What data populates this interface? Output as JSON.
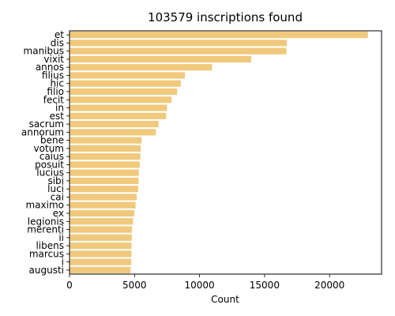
{
  "chart_data": {
    "type": "bar",
    "orientation": "horizontal",
    "title": "103579 inscriptions found",
    "xlabel": "Count",
    "ylabel": "",
    "xlim": [
      0,
      24000
    ],
    "xticks": [
      0,
      5000,
      10000,
      15000,
      20000
    ],
    "grid": false,
    "bar_color": "#f0c97d",
    "categories": [
      "et",
      "dis",
      "manibus",
      "vixit",
      "annos",
      "filius",
      "hic",
      "filio",
      "fecit",
      "in",
      "est",
      "sacrum",
      "annorum",
      "bene",
      "votum",
      "caius",
      "posuit",
      "lucius",
      "sibi",
      "luci",
      "cai",
      "maximo",
      "ex",
      "legionis",
      "merenti",
      "ii",
      "libens",
      "marcus",
      "i",
      "augusti"
    ],
    "values": [
      22950,
      16720,
      16690,
      13980,
      10970,
      8870,
      8560,
      8280,
      7850,
      7500,
      7430,
      6850,
      6640,
      5540,
      5470,
      5450,
      5400,
      5330,
      5310,
      5280,
      5170,
      5080,
      4980,
      4890,
      4810,
      4790,
      4770,
      4760,
      4750,
      4700
    ]
  }
}
